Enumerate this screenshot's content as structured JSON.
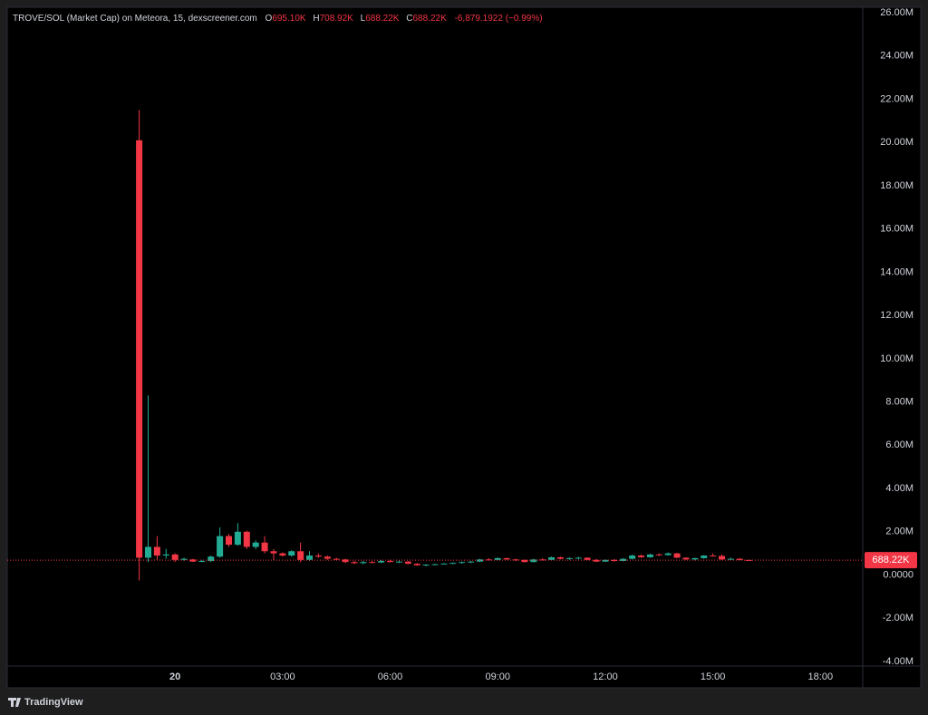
{
  "header": {
    "symbol": "TROVE/SOL (Market Cap) on Meteora, 15, dexscreener.com",
    "o_label": "O",
    "o_value": "695.10K",
    "h_label": "H",
    "h_value": "708.92K",
    "l_label": "L",
    "l_value": "688.22K",
    "c_label": "C",
    "c_value": "688.22K",
    "change": "-6,879.1922 (−0.99%)"
  },
  "footer": {
    "brand": "TradingView"
  },
  "chart_data": {
    "type": "candlestick",
    "x": [
      -1,
      -0.75,
      -0.5,
      -0.25,
      0,
      0.25,
      0.5,
      0.75,
      1,
      1.25,
      1.5,
      1.75,
      2,
      2.25,
      2.5,
      2.75,
      3,
      3.25,
      3.5,
      3.75,
      4,
      4.25,
      4.5,
      4.75,
      5,
      5.25,
      5.5,
      5.75,
      6,
      6.25,
      6.5,
      6.75,
      7,
      7.25,
      7.5,
      7.75,
      8,
      8.25,
      8.5,
      8.75,
      9,
      9.25,
      9.5,
      9.75,
      10,
      10.25,
      10.5,
      10.75,
      11,
      11.25,
      11.5,
      11.75,
      12,
      12.25,
      12.5,
      12.75,
      13,
      13.25,
      13.5,
      13.75,
      14,
      14.25,
      14.5,
      14.75,
      15,
      15.25,
      15.5,
      15.75,
      16
    ],
    "open": [
      20.1,
      0.8,
      1.3,
      0.9,
      0.95,
      0.7,
      0.72,
      0.62,
      0.65,
      0.85,
      1.8,
      1.4,
      2.0,
      1.3,
      1.5,
      1.1,
      1.0,
      0.9,
      1.1,
      0.7,
      0.9,
      0.85,
      0.75,
      0.72,
      0.6,
      0.55,
      0.6,
      0.58,
      0.65,
      0.6,
      0.62,
      0.52,
      0.45,
      0.48,
      0.5,
      0.53,
      0.56,
      0.6,
      0.62,
      0.72,
      0.7,
      0.78,
      0.72,
      0.7,
      0.6,
      0.72,
      0.7,
      0.82,
      0.75,
      0.78,
      0.8,
      0.7,
      0.62,
      0.7,
      0.65,
      0.75,
      0.9,
      0.82,
      0.95,
      0.92,
      1.0,
      0.8,
      0.72,
      0.78,
      0.9,
      0.88,
      0.72,
      0.75,
      0.695
    ],
    "high": [
      21.5,
      8.3,
      1.8,
      1.2,
      1.0,
      0.8,
      0.75,
      0.7,
      0.9,
      2.2,
      1.9,
      2.4,
      2.05,
      1.6,
      1.8,
      1.2,
      1.05,
      1.15,
      1.5,
      1.1,
      1.0,
      0.9,
      0.8,
      0.75,
      0.65,
      0.65,
      0.65,
      0.7,
      0.7,
      0.68,
      0.65,
      0.55,
      0.5,
      0.52,
      0.55,
      0.58,
      0.62,
      0.65,
      0.75,
      0.78,
      0.82,
      0.8,
      0.76,
      0.72,
      0.75,
      0.78,
      0.85,
      0.85,
      0.82,
      0.84,
      0.82,
      0.74,
      0.72,
      0.74,
      0.78,
      0.95,
      0.95,
      0.98,
      1.0,
      1.05,
      1.02,
      0.82,
      0.8,
      0.92,
      1.0,
      0.95,
      0.8,
      0.78,
      0.709
    ],
    "low": [
      -0.25,
      0.6,
      0.7,
      0.75,
      0.6,
      0.65,
      0.6,
      0.58,
      0.6,
      0.8,
      1.3,
      1.35,
      1.2,
      1.2,
      1.0,
      0.7,
      0.85,
      0.85,
      0.6,
      0.65,
      0.8,
      0.7,
      0.68,
      0.55,
      0.5,
      0.5,
      0.55,
      0.55,
      0.58,
      0.55,
      0.5,
      0.42,
      0.4,
      0.45,
      0.48,
      0.5,
      0.52,
      0.55,
      0.6,
      0.68,
      0.68,
      0.7,
      0.65,
      0.58,
      0.58,
      0.68,
      0.68,
      0.72,
      0.7,
      0.72,
      0.68,
      0.6,
      0.6,
      0.62,
      0.63,
      0.72,
      0.8,
      0.8,
      0.88,
      0.9,
      0.78,
      0.7,
      0.68,
      0.75,
      0.85,
      0.7,
      0.68,
      0.68,
      0.688
    ],
    "close": [
      0.8,
      1.3,
      0.9,
      0.95,
      0.7,
      0.75,
      0.62,
      0.65,
      0.85,
      1.8,
      1.4,
      2.0,
      1.3,
      1.5,
      1.1,
      1.0,
      0.9,
      1.1,
      0.7,
      0.9,
      0.85,
      0.75,
      0.72,
      0.6,
      0.55,
      0.6,
      0.58,
      0.65,
      0.6,
      0.62,
      0.52,
      0.45,
      0.48,
      0.5,
      0.53,
      0.56,
      0.6,
      0.62,
      0.72,
      0.7,
      0.78,
      0.72,
      0.7,
      0.6,
      0.72,
      0.7,
      0.82,
      0.75,
      0.78,
      0.8,
      0.7,
      0.62,
      0.7,
      0.65,
      0.75,
      0.9,
      0.82,
      0.95,
      0.92,
      1.0,
      0.8,
      0.72,
      0.78,
      0.9,
      0.88,
      0.72,
      0.75,
      0.695,
      0.688
    ],
    "up_color": "#22ab94",
    "down_color": "#f23645",
    "last_price_label": "688.22K",
    "xlim": [
      -4.68,
      19.18
    ],
    "xticks": [
      {
        "value": 0,
        "label": "20"
      },
      {
        "value": 3,
        "label": "03:00"
      },
      {
        "value": 6,
        "label": "06:00"
      },
      {
        "value": 9,
        "label": "09:00"
      },
      {
        "value": 12,
        "label": "12:00"
      },
      {
        "value": 15,
        "label": "15:00"
      },
      {
        "value": 18,
        "label": "18:00"
      }
    ],
    "ylim": [
      -4.21,
      26.25
    ],
    "yticks": [
      {
        "value": 26,
        "label": "26.00M"
      },
      {
        "value": 24,
        "label": "24.00M"
      },
      {
        "value": 22,
        "label": "22.00M"
      },
      {
        "value": 20,
        "label": "20.00M"
      },
      {
        "value": 18,
        "label": "18.00M"
      },
      {
        "value": 16,
        "label": "16.00M"
      },
      {
        "value": 14,
        "label": "14.00M"
      },
      {
        "value": 12,
        "label": "12.00M"
      },
      {
        "value": 10,
        "label": "10.00M"
      },
      {
        "value": 8,
        "label": "8.00M"
      },
      {
        "value": 6,
        "label": "6.00M"
      },
      {
        "value": 4,
        "label": "4.00M"
      },
      {
        "value": 2,
        "label": "2.00M"
      },
      {
        "value": 0,
        "label": "0.0000"
      },
      {
        "value": -2,
        "label": "-2.00M"
      },
      {
        "value": -4,
        "label": "-4.00M"
      }
    ],
    "grid": false
  }
}
